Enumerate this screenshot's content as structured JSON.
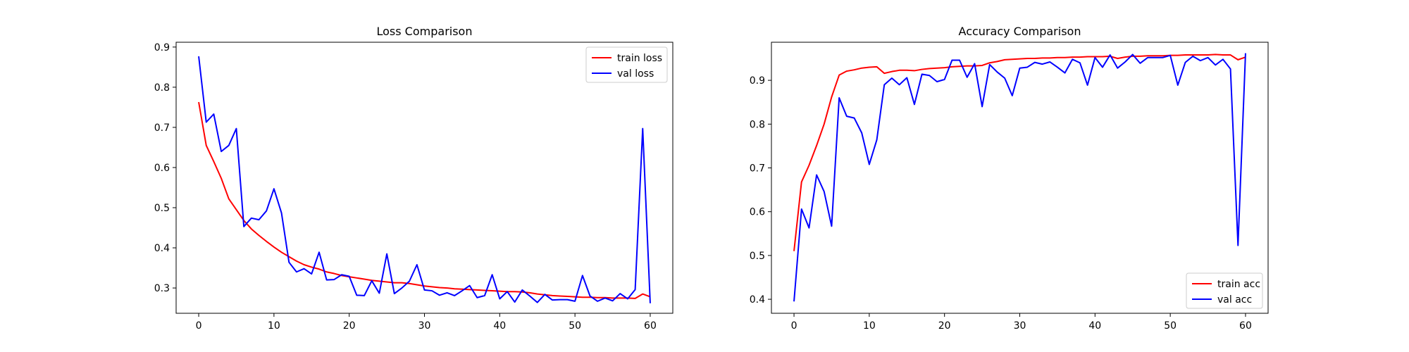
{
  "chart_data": [
    {
      "type": "line",
      "title": "Loss Comparison",
      "xlabel": "",
      "ylabel": "",
      "xlim": [
        -3,
        63
      ],
      "ylim": [
        0.237,
        0.912
      ],
      "xticks": [
        0,
        10,
        20,
        30,
        40,
        50,
        60
      ],
      "yticks": [
        0.3,
        0.4,
        0.5,
        0.6,
        0.7,
        0.8,
        0.9
      ],
      "grid": false,
      "legend_position": "top-right",
      "x": [
        0,
        1,
        2,
        3,
        4,
        5,
        6,
        7,
        8,
        9,
        10,
        11,
        12,
        13,
        14,
        15,
        16,
        17,
        18,
        19,
        20,
        21,
        22,
        23,
        24,
        25,
        26,
        27,
        28,
        29,
        30,
        31,
        32,
        33,
        34,
        35,
        36,
        37,
        38,
        39,
        40,
        41,
        42,
        43,
        44,
        45,
        46,
        47,
        48,
        49,
        50,
        51,
        52,
        53,
        54,
        55,
        56,
        57,
        58,
        59,
        60
      ],
      "series": [
        {
          "name": "train loss",
          "color": "#ff0000",
          "values": [
            0.763,
            0.655,
            0.615,
            0.573,
            0.522,
            0.495,
            0.468,
            0.447,
            0.431,
            0.416,
            0.402,
            0.389,
            0.378,
            0.367,
            0.358,
            0.352,
            0.347,
            0.34,
            0.336,
            0.331,
            0.328,
            0.325,
            0.322,
            0.319,
            0.317,
            0.315,
            0.313,
            0.313,
            0.311,
            0.308,
            0.305,
            0.303,
            0.301,
            0.3,
            0.298,
            0.297,
            0.296,
            0.295,
            0.294,
            0.293,
            0.292,
            0.291,
            0.291,
            0.29,
            0.288,
            0.285,
            0.283,
            0.281,
            0.28,
            0.279,
            0.278,
            0.277,
            0.277,
            0.276,
            0.276,
            0.275,
            0.275,
            0.275,
            0.274,
            0.285,
            0.278
          ]
        },
        {
          "name": "val loss",
          "color": "#0000ff",
          "values": [
            0.877,
            0.713,
            0.733,
            0.64,
            0.655,
            0.697,
            0.453,
            0.474,
            0.47,
            0.492,
            0.547,
            0.487,
            0.364,
            0.34,
            0.348,
            0.335,
            0.389,
            0.32,
            0.321,
            0.333,
            0.329,
            0.282,
            0.281,
            0.318,
            0.287,
            0.385,
            0.286,
            0.3,
            0.317,
            0.358,
            0.295,
            0.293,
            0.282,
            0.288,
            0.281,
            0.293,
            0.306,
            0.276,
            0.281,
            0.333,
            0.273,
            0.291,
            0.265,
            0.295,
            0.28,
            0.264,
            0.284,
            0.27,
            0.271,
            0.271,
            0.267,
            0.331,
            0.28,
            0.267,
            0.275,
            0.268,
            0.286,
            0.273,
            0.296,
            0.697,
            0.262
          ]
        }
      ]
    },
    {
      "type": "line",
      "title": "Accuracy Comparison",
      "xlabel": "",
      "ylabel": "",
      "xlim": [
        -3,
        63
      ],
      "ylim": [
        0.368,
        0.987
      ],
      "xticks": [
        0,
        10,
        20,
        30,
        40,
        50,
        60
      ],
      "yticks": [
        0.4,
        0.5,
        0.6,
        0.7,
        0.8,
        0.9
      ],
      "grid": false,
      "legend_position": "bottom-right",
      "x": [
        0,
        1,
        2,
        3,
        4,
        5,
        6,
        7,
        8,
        9,
        10,
        11,
        12,
        13,
        14,
        15,
        16,
        17,
        18,
        19,
        20,
        21,
        22,
        23,
        24,
        25,
        26,
        27,
        28,
        29,
        30,
        31,
        32,
        33,
        34,
        35,
        36,
        37,
        38,
        39,
        40,
        41,
        42,
        43,
        44,
        45,
        46,
        47,
        48,
        49,
        50,
        51,
        52,
        53,
        54,
        55,
        56,
        57,
        58,
        59,
        60
      ],
      "series": [
        {
          "name": "train acc",
          "color": "#ff0000",
          "values": [
            0.51,
            0.668,
            0.706,
            0.751,
            0.8,
            0.862,
            0.912,
            0.921,
            0.924,
            0.928,
            0.93,
            0.931,
            0.916,
            0.92,
            0.923,
            0.923,
            0.922,
            0.925,
            0.927,
            0.928,
            0.929,
            0.931,
            0.932,
            0.933,
            0.933,
            0.934,
            0.94,
            0.943,
            0.947,
            0.948,
            0.949,
            0.95,
            0.95,
            0.951,
            0.951,
            0.952,
            0.952,
            0.953,
            0.953,
            0.954,
            0.954,
            0.954,
            0.955,
            0.95,
            0.953,
            0.955,
            0.955,
            0.956,
            0.956,
            0.956,
            0.957,
            0.957,
            0.958,
            0.958,
            0.958,
            0.958,
            0.959,
            0.958,
            0.958,
            0.947,
            0.953
          ]
        },
        {
          "name": "val acc",
          "color": "#0000ff",
          "values": [
            0.395,
            0.606,
            0.563,
            0.684,
            0.646,
            0.567,
            0.86,
            0.818,
            0.814,
            0.78,
            0.708,
            0.764,
            0.89,
            0.905,
            0.89,
            0.906,
            0.845,
            0.914,
            0.911,
            0.897,
            0.902,
            0.946,
            0.946,
            0.907,
            0.938,
            0.84,
            0.936,
            0.919,
            0.905,
            0.865,
            0.928,
            0.93,
            0.941,
            0.937,
            0.942,
            0.93,
            0.917,
            0.948,
            0.94,
            0.889,
            0.952,
            0.93,
            0.958,
            0.928,
            0.942,
            0.959,
            0.939,
            0.952,
            0.952,
            0.952,
            0.957,
            0.889,
            0.941,
            0.955,
            0.945,
            0.952,
            0.935,
            0.948,
            0.926,
            0.523,
            0.962
          ]
        }
      ]
    }
  ]
}
